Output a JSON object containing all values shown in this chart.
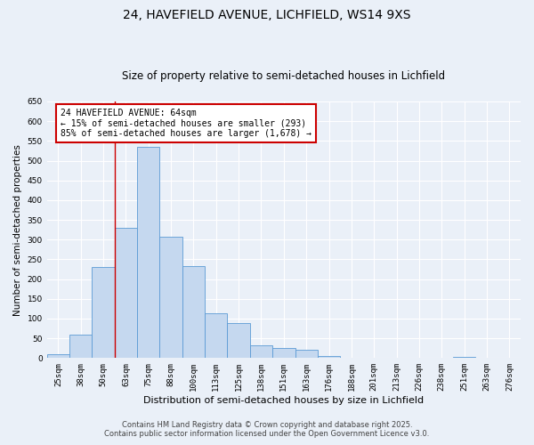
{
  "title1": "24, HAVEFIELD AVENUE, LICHFIELD, WS14 9XS",
  "title2": "Size of property relative to semi-detached houses in Lichfield",
  "xlabel": "Distribution of semi-detached houses by size in Lichfield",
  "ylabel": "Number of semi-detached properties",
  "categories": [
    "25sqm",
    "38sqm",
    "50sqm",
    "63sqm",
    "75sqm",
    "88sqm",
    "100sqm",
    "113sqm",
    "125sqm",
    "138sqm",
    "151sqm",
    "163sqm",
    "176sqm",
    "188sqm",
    "201sqm",
    "213sqm",
    "226sqm",
    "238sqm",
    "251sqm",
    "263sqm",
    "276sqm"
  ],
  "values": [
    10,
    60,
    230,
    330,
    535,
    308,
    232,
    113,
    88,
    32,
    26,
    21,
    5,
    0,
    0,
    0,
    0,
    0,
    3,
    0,
    0
  ],
  "bar_color": "#c5d8ef",
  "bar_edge_color": "#5b9bd5",
  "annotation_text_line1": "24 HAVEFIELD AVENUE: 64sqm",
  "annotation_text_line2": "← 15% of semi-detached houses are smaller (293)",
  "annotation_text_line3": "85% of semi-detached houses are larger (1,678) →",
  "annot_box_color": "#ffffff",
  "annot_box_edge": "#cc0000",
  "vline_color": "#cc0000",
  "ylim": [
    0,
    650
  ],
  "yticks": [
    0,
    50,
    100,
    150,
    200,
    250,
    300,
    350,
    400,
    450,
    500,
    550,
    600,
    650
  ],
  "bg_color": "#eaf0f8",
  "grid_color": "#ffffff",
  "footer1": "Contains HM Land Registry data © Crown copyright and database right 2025.",
  "footer2": "Contains public sector information licensed under the Open Government Licence v3.0.",
  "title1_fontsize": 10,
  "title2_fontsize": 8.5,
  "tick_fontsize": 6.5,
  "xlabel_fontsize": 8,
  "ylabel_fontsize": 7.5,
  "footer_fontsize": 6,
  "annot_fontsize": 7,
  "vline_bin_index": 2.5
}
